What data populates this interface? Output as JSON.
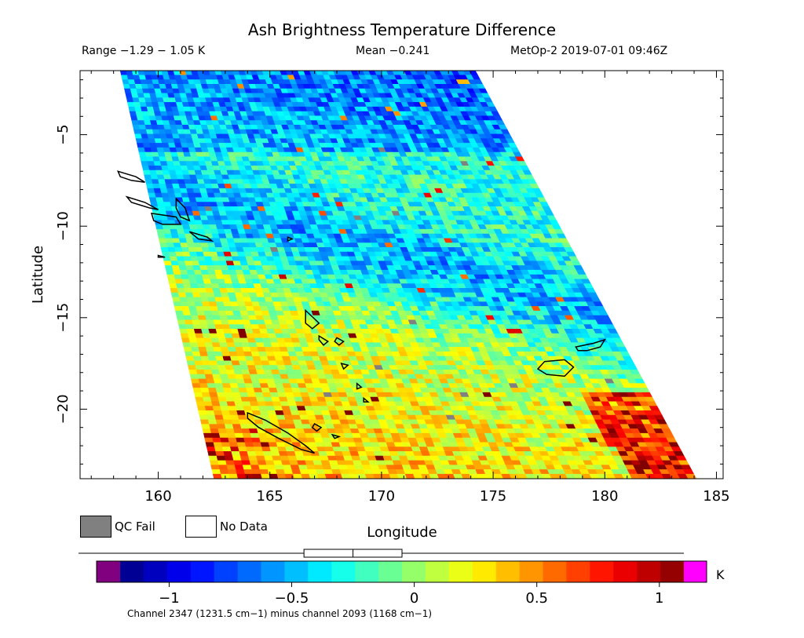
{
  "header": {
    "title": "Ash Brightness Temperature Difference",
    "range": "Range −1.29 − 1.05 K",
    "mean": "Mean −0.241",
    "satellite_time": "MetOp-2 2019-07-01 09:46Z"
  },
  "legend": {
    "qc_fail_label": "QC Fail",
    "qc_fail_color": "#808080",
    "no_data_label": "No Data",
    "no_data_color": "#ffffff"
  },
  "colorbar": {
    "unit_label": "K",
    "tick_labels": [
      "−1",
      "−0.5",
      "0",
      "0.5",
      "1"
    ],
    "tick_values": [
      -1,
      -0.5,
      0,
      0.5,
      1
    ],
    "min": -1.2,
    "max": 1.1,
    "under_color": "#800080",
    "over_color": "#ff00ff",
    "box_range": [
      -0.45,
      -0.05
    ],
    "box_median": -0.25
  },
  "footer": {
    "channel_note": "Channel 2347 (1231.5 cm−1) minus channel 2093 (1168 cm−1)"
  },
  "chart_data": {
    "type": "heatmap",
    "title": "Ash Brightness Temperature Difference",
    "xlabel": "Longitude",
    "ylabel": "Latitude",
    "xlim": [
      156.5,
      185.3
    ],
    "ylim": [
      -23.8,
      -1.5
    ],
    "x_ticks": [
      160,
      165,
      170,
      175,
      180,
      185
    ],
    "x_tick_labels": [
      "160",
      "165",
      "170",
      "175",
      "180",
      "185"
    ],
    "y_ticks": [
      -5,
      -10,
      -15,
      -20
    ],
    "y_tick_labels": [
      "−5",
      "−10",
      "−15",
      "−20"
    ],
    "swath_corners": [
      [
        158.3,
        -1.5
      ],
      [
        174.2,
        -1.5
      ],
      [
        184.1,
        -23.8
      ],
      [
        162.5,
        -23.8
      ]
    ],
    "value_range": [
      -1.29,
      1.05
    ],
    "mean": -0.241,
    "field": "Brightness temperature difference (K) across the satellite swath: mostly negative (about −0.5 to −1.0) in the north and along a band from 165E,-10 to 180E,-15; near zero to +0.4 in the south-west; scattered +0.5 to +1.0 pixels near the southern and eastern swath edges.",
    "coastlines": [
      {
        "name": "Bougainville",
        "points": [
          [
            158.2,
            -7.0
          ],
          [
            159.0,
            -7.3
          ],
          [
            159.4,
            -7.6
          ],
          [
            158.8,
            -7.5
          ],
          [
            158.3,
            -7.3
          ],
          [
            158.2,
            -7.0
          ]
        ]
      },
      {
        "name": "Choiseul",
        "points": [
          [
            158.6,
            -8.4
          ],
          [
            159.4,
            -8.7
          ],
          [
            160.0,
            -9.1
          ],
          [
            159.6,
            -9.0
          ],
          [
            158.8,
            -8.7
          ],
          [
            158.6,
            -8.4
          ]
        ]
      },
      {
        "name": "Guadalcanal",
        "points": [
          [
            159.7,
            -9.3
          ],
          [
            160.8,
            -9.5
          ],
          [
            161.0,
            -9.9
          ],
          [
            160.2,
            -9.9
          ],
          [
            159.8,
            -9.7
          ],
          [
            159.7,
            -9.3
          ]
        ]
      },
      {
        "name": "Malaita",
        "points": [
          [
            160.8,
            -8.5
          ],
          [
            161.2,
            -9.0
          ],
          [
            161.4,
            -9.7
          ],
          [
            161.0,
            -9.5
          ],
          [
            160.8,
            -9.0
          ],
          [
            160.8,
            -8.5
          ]
        ]
      },
      {
        "name": "Makira",
        "points": [
          [
            161.4,
            -10.3
          ],
          [
            162.2,
            -10.6
          ],
          [
            162.4,
            -10.8
          ],
          [
            161.8,
            -10.7
          ],
          [
            161.4,
            -10.3
          ]
        ]
      },
      {
        "name": "Rennell",
        "points": [
          [
            160.0,
            -11.6
          ],
          [
            160.3,
            -11.7
          ],
          [
            160.0,
            -11.7
          ],
          [
            160.0,
            -11.6
          ]
        ]
      },
      {
        "name": "Ndeni",
        "points": [
          [
            165.8,
            -10.6
          ],
          [
            166.0,
            -10.7
          ],
          [
            165.8,
            -10.8
          ],
          [
            165.8,
            -10.6
          ]
        ]
      },
      {
        "name": "Espiritu Santo",
        "points": [
          [
            166.6,
            -14.6
          ],
          [
            167.2,
            -15.3
          ],
          [
            166.9,
            -15.6
          ],
          [
            166.6,
            -15.3
          ],
          [
            166.6,
            -14.6
          ]
        ]
      },
      {
        "name": "Malakula",
        "points": [
          [
            167.2,
            -16.0
          ],
          [
            167.6,
            -16.3
          ],
          [
            167.4,
            -16.5
          ],
          [
            167.2,
            -16.2
          ],
          [
            167.2,
            -16.0
          ]
        ]
      },
      {
        "name": "Ambrym",
        "points": [
          [
            168.0,
            -16.1
          ],
          [
            168.3,
            -16.3
          ],
          [
            168.1,
            -16.5
          ],
          [
            167.9,
            -16.3
          ],
          [
            168.0,
            -16.1
          ]
        ]
      },
      {
        "name": "Efate",
        "points": [
          [
            168.2,
            -17.5
          ],
          [
            168.5,
            -17.6
          ],
          [
            168.3,
            -17.8
          ],
          [
            168.2,
            -17.5
          ]
        ]
      },
      {
        "name": "Erromango",
        "points": [
          [
            168.9,
            -18.6
          ],
          [
            169.1,
            -18.8
          ],
          [
            168.9,
            -18.9
          ],
          [
            168.9,
            -18.6
          ]
        ]
      },
      {
        "name": "Tanna",
        "points": [
          [
            169.2,
            -19.4
          ],
          [
            169.4,
            -19.6
          ],
          [
            169.2,
            -19.6
          ],
          [
            169.2,
            -19.4
          ]
        ]
      },
      {
        "name": "Grande Terre",
        "points": [
          [
            164.0,
            -20.2
          ],
          [
            164.8,
            -20.6
          ],
          [
            165.8,
            -21.3
          ],
          [
            166.6,
            -22.0
          ],
          [
            167.0,
            -22.4
          ],
          [
            166.4,
            -22.2
          ],
          [
            165.4,
            -21.6
          ],
          [
            164.5,
            -21.0
          ],
          [
            164.0,
            -20.5
          ],
          [
            164.0,
            -20.2
          ]
        ]
      },
      {
        "name": "Lifou",
        "points": [
          [
            167.0,
            -20.8
          ],
          [
            167.3,
            -21.0
          ],
          [
            167.1,
            -21.2
          ],
          [
            166.9,
            -21.0
          ],
          [
            167.0,
            -20.8
          ]
        ]
      },
      {
        "name": "Mare",
        "points": [
          [
            167.8,
            -21.4
          ],
          [
            168.1,
            -21.5
          ],
          [
            167.9,
            -21.6
          ],
          [
            167.8,
            -21.4
          ]
        ]
      },
      {
        "name": "Viti Levu",
        "points": [
          [
            177.3,
            -17.4
          ],
          [
            178.2,
            -17.3
          ],
          [
            178.6,
            -17.7
          ],
          [
            178.2,
            -18.2
          ],
          [
            177.4,
            -18.1
          ],
          [
            177.0,
            -17.8
          ],
          [
            177.3,
            -17.4
          ]
        ]
      },
      {
        "name": "Vanua Levu",
        "points": [
          [
            178.7,
            -16.6
          ],
          [
            179.5,
            -16.4
          ],
          [
            180.0,
            -16.2
          ],
          [
            179.8,
            -16.6
          ],
          [
            179.2,
            -16.8
          ],
          [
            178.8,
            -16.8
          ],
          [
            178.7,
            -16.6
          ]
        ]
      }
    ]
  }
}
